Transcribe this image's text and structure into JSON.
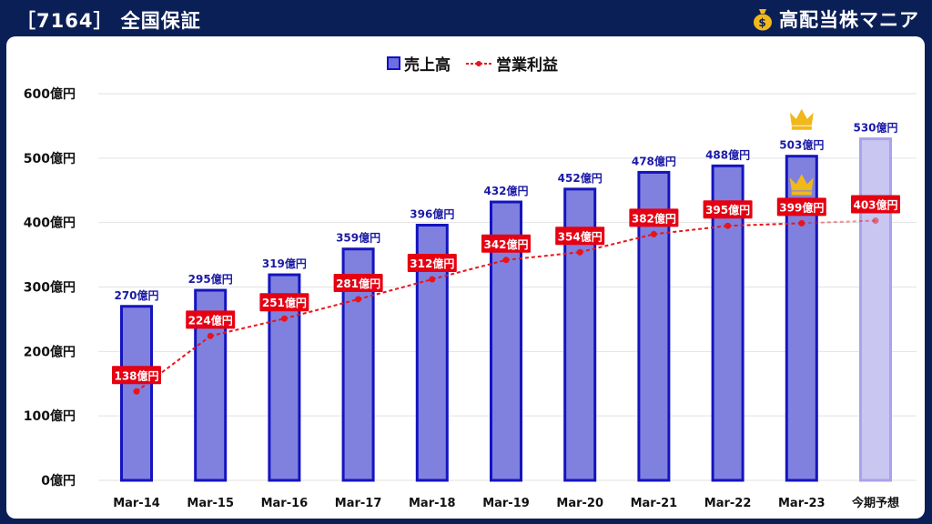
{
  "header": {
    "title": "［7164］ 全国保証",
    "brand": "高配当株マニア"
  },
  "colors": {
    "background": "#0b1f57",
    "bar_fill": "#8081de",
    "bar_stroke": "#1414c0",
    "forecast_fill": "#c9c6f2",
    "forecast_stroke": "#a9a3ea",
    "line": "#e8141c",
    "label_box": "#e60012",
    "crown": "#f1b81a"
  },
  "chart_data": {
    "type": "bar",
    "categories": [
      "Mar-14",
      "Mar-15",
      "Mar-16",
      "Mar-17",
      "Mar-18",
      "Mar-19",
      "Mar-20",
      "Mar-21",
      "Mar-22",
      "Mar-23",
      "今期予想"
    ],
    "series": [
      {
        "name": "売上高",
        "kind": "bar",
        "values": [
          270,
          295,
          319,
          359,
          396,
          432,
          452,
          478,
          488,
          503,
          530
        ],
        "labels": [
          "270億円",
          "295億円",
          "319億円",
          "359億円",
          "396億円",
          "432億円",
          "452億円",
          "478億円",
          "488億円",
          "503億円",
          "530億円"
        ]
      },
      {
        "name": "営業利益",
        "kind": "line",
        "values": [
          138,
          224,
          251,
          281,
          312,
          342,
          354,
          382,
          395,
          399,
          403
        ],
        "labels": [
          "138億円",
          "224億円",
          "251億円",
          "281億円",
          "312億円",
          "342億円",
          "354億円",
          "382億円",
          "395億円",
          "399億円",
          "403億円"
        ]
      }
    ],
    "forecast_category": "今期予想",
    "record_high_markers": [
      "Mar-23"
    ],
    "yticks": [
      "0億円",
      "100億円",
      "200億円",
      "300億円",
      "400億円",
      "500億円",
      "600億円"
    ],
    "ylim": [
      0,
      600
    ],
    "grid": true,
    "legend_position": "top-center"
  }
}
